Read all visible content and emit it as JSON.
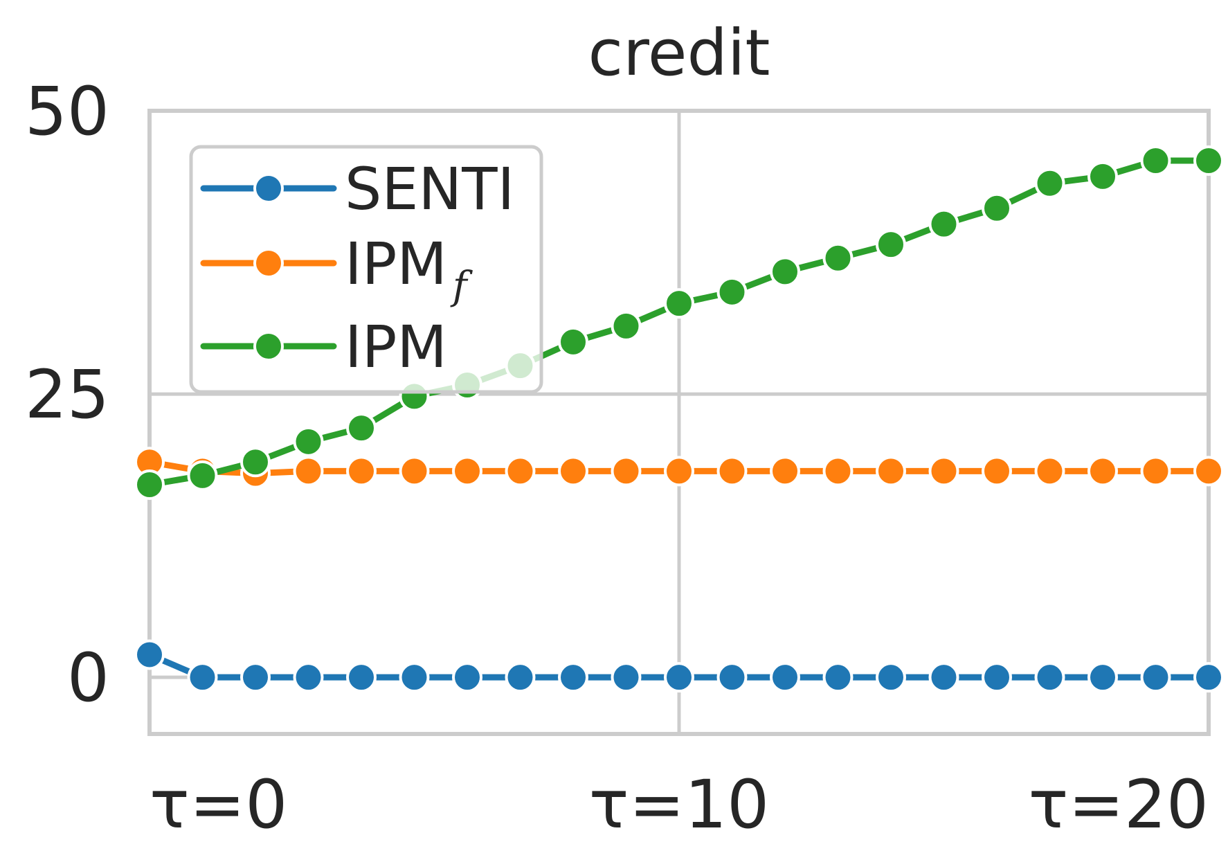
{
  "chart_data": {
    "type": "line",
    "title": "credit",
    "xlabel": "",
    "ylabel": "",
    "x": [
      0,
      1,
      2,
      3,
      4,
      5,
      6,
      7,
      8,
      9,
      10,
      11,
      12,
      13,
      14,
      15,
      16,
      17,
      18,
      19,
      20
    ],
    "xlim": [
      0,
      20
    ],
    "ylim": [
      -5,
      50
    ],
    "x_ticks": [
      {
        "value": 0,
        "label": "τ=0"
      },
      {
        "value": 10,
        "label": "τ=10"
      },
      {
        "value": 20,
        "label": "τ=20"
      }
    ],
    "y_ticks": [
      {
        "value": 0,
        "label": "0"
      },
      {
        "value": 25,
        "label": "25"
      },
      {
        "value": 50,
        "label": "50"
      }
    ],
    "grid": true,
    "legend_position": "upper-left",
    "series": [
      {
        "name": "SENTI",
        "color": "#1f77b4",
        "values": [
          2.0,
          0,
          0,
          0,
          0,
          0,
          0,
          0,
          0,
          0,
          0,
          0,
          0,
          0,
          0,
          0,
          0,
          0,
          0,
          0,
          0
        ]
      },
      {
        "name": "IPM",
        "name_subscript": "f",
        "color": "#ff7f0e",
        "values": [
          19.0,
          18.2,
          18.0,
          18.2,
          18.2,
          18.2,
          18.2,
          18.2,
          18.2,
          18.2,
          18.2,
          18.2,
          18.2,
          18.2,
          18.2,
          18.2,
          18.2,
          18.2,
          18.2,
          18.2,
          18.2
        ]
      },
      {
        "name": "IPM",
        "color": "#2ca02c",
        "values": [
          17.0,
          17.8,
          19.0,
          20.8,
          22.0,
          24.8,
          25.8,
          27.5,
          29.6,
          31.0,
          33.0,
          34.0,
          35.8,
          37.0,
          38.2,
          40.0,
          41.4,
          43.6,
          44.2,
          45.6,
          45.6
        ]
      }
    ]
  }
}
